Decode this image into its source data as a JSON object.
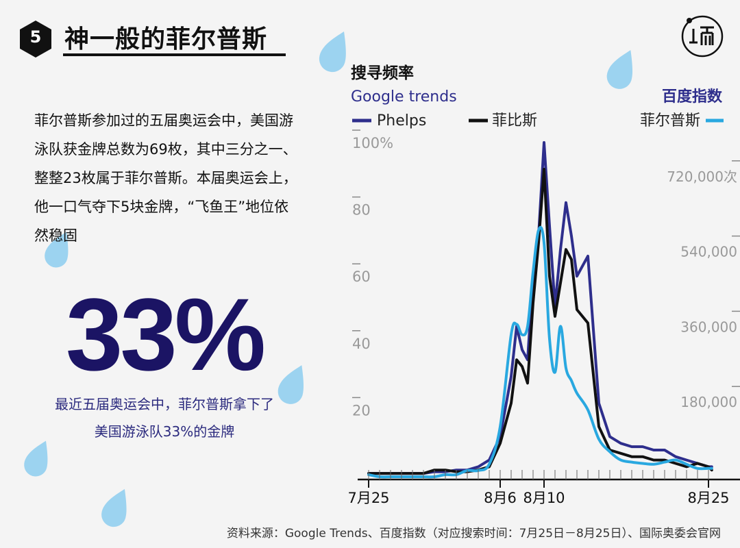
{
  "header": {
    "number": "5",
    "title": "神一般的菲尔普斯"
  },
  "body_text": "菲尔普斯参加过的五届奥运会中，美国游泳队获金牌总数为69枚，其中三分之一、整整23枚属于菲尔普斯。本届奥运会上，他一口气夺下5块金牌，“飞鱼王”地位依然稳固",
  "stat": {
    "value": "33%",
    "caption_line1": "最近五届奥运会中，菲尔普斯拿下了",
    "caption_line2": "美国游泳队33%的金牌"
  },
  "source": "资料来源：Google Trends、百度指数（对应搜索时间：7月25日－8月25日）、国际奥委会官网",
  "colors": {
    "phelps": "#2e2e8c",
    "feibisi": "#111111",
    "feiersipusi": "#29a8e0",
    "drop": "#9cd3f0",
    "big_stat": "#1b1464"
  },
  "chart_data": {
    "type": "line",
    "title": "搜寻频率",
    "left_axis_title": "Google trends",
    "right_axis_title": "百度指数",
    "left_ticks": [
      "100%",
      "80",
      "60",
      "40",
      "20"
    ],
    "left_tick_values": [
      100,
      80,
      60,
      40,
      20
    ],
    "right_ticks": [
      "720,000次",
      "540,000",
      "360,000",
      "180,000"
    ],
    "right_tick_values": [
      720000,
      540000,
      360000,
      180000
    ],
    "left_ylim": [
      0,
      100
    ],
    "right_ylim": [
      0,
      800000
    ],
    "x_tick_labels": [
      "7月25",
      "8月6",
      "8月10",
      "8月25"
    ],
    "x_tick_days": [
      0,
      12,
      16,
      31
    ],
    "x_range_days": [
      0,
      32
    ],
    "series": [
      {
        "name": "Phelps",
        "axis": "left",
        "color": "#2e2e8c",
        "x": [
          0,
          1,
          2,
          3,
          4,
          5,
          6,
          7,
          8,
          9,
          10,
          11,
          12,
          13,
          13.5,
          14,
          14.5,
          15,
          15.5,
          16,
          16.5,
          17,
          17.5,
          18,
          18.5,
          19,
          20,
          21,
          22,
          23,
          24,
          25,
          26,
          27,
          28,
          29,
          30,
          31,
          31.3
        ],
        "y": [
          1,
          1,
          1,
          1,
          1,
          1,
          1.5,
          1.5,
          2,
          2,
          3,
          5,
          12,
          30,
          45,
          38,
          35,
          60,
          72,
          100,
          75,
          51,
          68,
          82,
          72,
          60,
          66,
          22,
          12,
          10,
          9,
          9,
          8,
          8,
          6,
          5,
          4,
          3,
          3
        ]
      },
      {
        "name": "菲比斯",
        "axis": "left",
        "color": "#111111",
        "x": [
          0,
          1,
          2,
          3,
          4,
          5,
          6,
          7,
          8,
          9,
          10,
          11,
          12,
          13,
          13.5,
          14,
          14.5,
          15,
          15.5,
          16,
          16.5,
          17,
          17.5,
          18,
          18.5,
          19,
          20,
          21,
          22,
          23,
          24,
          25,
          26,
          27,
          28,
          29,
          30,
          31,
          31.3
        ],
        "y": [
          1,
          1,
          1,
          1,
          1,
          1,
          2,
          2,
          1.5,
          1.5,
          2,
          3,
          10,
          22,
          35,
          33,
          28,
          52,
          70,
          92,
          60,
          48,
          58,
          68,
          65,
          50,
          46,
          15,
          8,
          7,
          6,
          6,
          5,
          5,
          4,
          3,
          4,
          3,
          2
        ]
      },
      {
        "name": "菲尔普斯",
        "axis": "right",
        "color": "#29a8e0",
        "x": [
          0,
          1,
          2,
          3,
          4,
          5,
          6,
          7,
          8,
          9,
          10,
          11,
          12,
          13,
          13.5,
          14,
          14.5,
          15,
          15.5,
          16,
          16.5,
          17,
          17.5,
          18,
          18.5,
          19,
          20,
          21,
          22,
          23,
          24,
          25,
          26,
          27,
          28,
          29,
          30,
          31,
          31.3
        ],
        "y": [
          5000,
          0,
          0,
          0,
          0,
          0,
          0,
          5000,
          5000,
          15000,
          15000,
          30000,
          120000,
          340000,
          365000,
          340000,
          360000,
          490000,
          590000,
          560000,
          330000,
          250000,
          360000,
          260000,
          230000,
          200000,
          160000,
          90000,
          60000,
          40000,
          35000,
          32000,
          30000,
          35000,
          40000,
          30000,
          20000,
          20000,
          20000
        ]
      }
    ]
  }
}
